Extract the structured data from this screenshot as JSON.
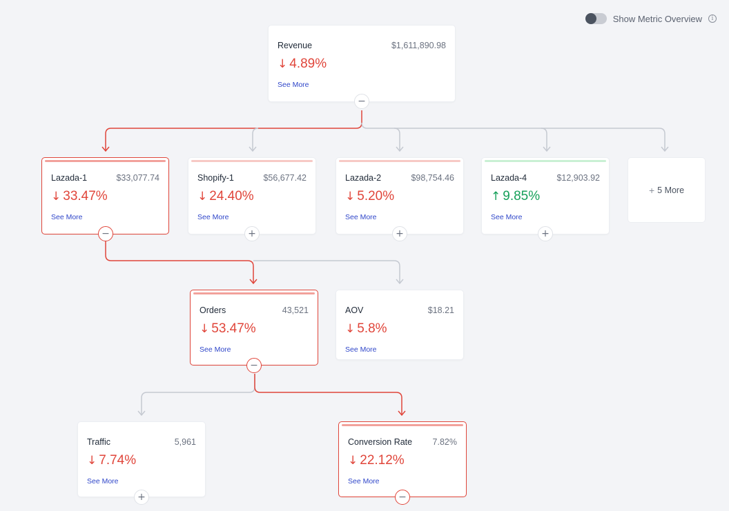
{
  "overview": {
    "label": "Show Metric Overview",
    "enabled": false
  },
  "nodes": {
    "revenue": {
      "name": "Revenue",
      "value": "$1,611,890.98",
      "direction": "down",
      "change": "4.89%",
      "link": "See More"
    },
    "lazada1": {
      "name": "Lazada-1",
      "value": "$33,077.74",
      "direction": "down",
      "change": "33.47%",
      "link": "See More"
    },
    "shopify1": {
      "name": "Shopify-1",
      "value": "$56,677.42",
      "direction": "down",
      "change": "24.40%",
      "link": "See More"
    },
    "lazada2": {
      "name": "Lazada-2",
      "value": "$98,754.46",
      "direction": "down",
      "change": "5.20%",
      "link": "See More"
    },
    "lazada4": {
      "name": "Lazada-4",
      "value": "$12,903.92",
      "direction": "up",
      "change": "9.85%",
      "link": "See More"
    },
    "orders": {
      "name": "Orders",
      "value": "43,521",
      "direction": "down",
      "change": "53.47%",
      "link": "See More"
    },
    "aov": {
      "name": "AOV",
      "value": "$18.21",
      "direction": "down",
      "change": "5.8%",
      "link": "See More"
    },
    "traffic": {
      "name": "Traffic",
      "value": "5,961",
      "direction": "down",
      "change": "7.74%",
      "link": "See More"
    },
    "conversion": {
      "name": "Conversion Rate",
      "value": "7.82%",
      "direction": "down",
      "change": "22.12%",
      "link": "See More"
    }
  },
  "more_card": {
    "label": "5 More"
  },
  "symbols": {
    "down_arrow": "↓",
    "up_arrow": "↑",
    "collapse": "−",
    "expand": "+",
    "info": "i",
    "plus": "+"
  },
  "colors": {
    "negative": "#e0453a",
    "positive": "#16a05a",
    "link": "#2f46c9"
  }
}
